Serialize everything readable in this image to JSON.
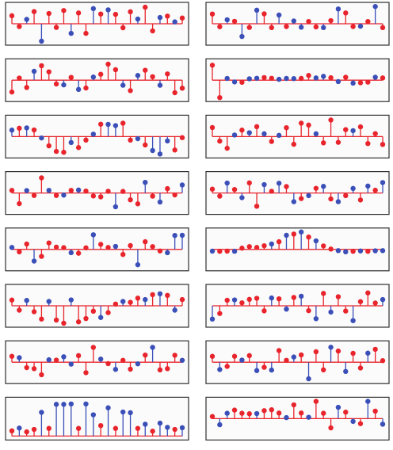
{
  "colors": {
    "red": "#e8242c",
    "blue": "#3b4fb8",
    "frame": "#2e2e2e",
    "panel_bg": "#fbfbfb"
  },
  "chart_data": [
    {
      "type": "stem",
      "panel": "left-1",
      "baseline": 0,
      "ylim": [
        -1,
        1
      ],
      "series": [
        {
          "color": "red",
          "x": [
            1,
            2,
            4,
            6,
            7,
            8,
            10,
            11,
            13,
            15,
            16,
            17,
            19,
            20,
            22,
            24
          ],
          "values": [
            0.46,
            -0.16,
            0.7,
            0.59,
            -0.21,
            0.76,
            0.62,
            -0.55,
            0.56,
            0.54,
            -0.23,
            0.69,
            0.95,
            -0.41,
            0.44,
            0.33
          ]
        },
        {
          "color": "blue",
          "x": [
            3,
            5,
            9,
            12,
            14,
            18,
            21,
            23
          ],
          "values": [
            0.25,
            -1.0,
            -0.55,
            0.87,
            0.8,
            0.27,
            0.36,
            0.11
          ]
        }
      ]
    },
    {
      "type": "stem",
      "panel": "right-1",
      "baseline": 0,
      "ylim": [
        -1,
        1
      ],
      "series": [
        {
          "color": "red",
          "x": [
            1,
            2,
            4,
            6,
            8,
            9,
            11,
            14,
            15,
            17,
            19,
            20,
            22,
            24
          ],
          "values": [
            0.56,
            -0.17,
            0.14,
            -0.21,
            0.57,
            -0.22,
            -0.16,
            0.13,
            -0.18,
            0.18,
            0.62,
            -0.16,
            0.13,
            -0.22
          ]
        },
        {
          "color": "blue",
          "x": [
            3,
            5,
            7,
            10,
            12,
            13,
            16,
            18,
            21,
            23
          ],
          "values": [
            0.23,
            -0.73,
            0.78,
            0.5,
            0.16,
            -0.2,
            -0.22,
            0.85,
            -0.14,
            0.99
          ]
        }
      ]
    },
    {
      "type": "stem",
      "panel": "left-2",
      "baseline": 0,
      "ylim": [
        -1,
        1
      ],
      "series": [
        {
          "color": "red",
          "x": [
            1,
            2,
            3,
            5,
            6,
            7,
            9,
            11,
            13,
            14,
            15,
            17,
            19,
            20,
            22,
            23,
            24
          ],
          "values": [
            -0.68,
            0.12,
            -0.42,
            0.83,
            0.48,
            -0.22,
            0.16,
            -0.45,
            0.34,
            0.92,
            0.6,
            -0.6,
            0.57,
            0.2,
            0.36,
            -0.72,
            -0.46
          ]
        },
        {
          "color": "blue",
          "x": [
            4,
            8,
            10,
            12,
            16,
            18,
            21
          ],
          "values": [
            0.51,
            -0.27,
            -0.53,
            0.18,
            -0.29,
            0.27,
            -0.29
          ]
        }
      ]
    },
    {
      "type": "stem",
      "panel": "right-2",
      "baseline": 0,
      "ylim": [
        -1,
        1
      ],
      "series": [
        {
          "color": "red",
          "x": [
            1,
            2,
            5,
            8,
            9,
            13,
            14,
            17,
            19,
            21,
            22,
            24
          ],
          "values": [
            0.86,
            -1.0,
            -0.12,
            0.15,
            0.11,
            0.1,
            0.27,
            0.14,
            0.17,
            -0.15,
            -0.11,
            0.13
          ]
        },
        {
          "color": "blue",
          "x": [
            3,
            4,
            6,
            7,
            10,
            11,
            12,
            15,
            16,
            18,
            20,
            23
          ],
          "values": [
            0.1,
            -0.1,
            0.08,
            0.11,
            0.05,
            0.1,
            0.09,
            0.13,
            0.22,
            -0.08,
            -0.17,
            0.17
          ]
        }
      ]
    },
    {
      "type": "stem",
      "panel": "left-3",
      "baseline": 0,
      "ylim": [
        -1,
        1
      ],
      "series": [
        {
          "color": "red",
          "x": [
            2,
            4,
            6,
            7,
            8,
            10,
            11,
            13,
            16,
            17,
            19,
            23,
            24
          ],
          "values": [
            0.48,
            0.38,
            -0.53,
            -0.85,
            -0.9,
            -0.63,
            -0.2,
            0.71,
            0.77,
            -0.2,
            -0.48,
            -0.77,
            -0.06
          ]
        },
        {
          "color": "blue",
          "x": [
            1,
            3,
            5,
            9,
            12,
            14,
            15,
            18,
            20,
            21,
            22
          ],
          "values": [
            0.37,
            0.5,
            -0.08,
            -0.34,
            0.14,
            0.7,
            0.63,
            -0.12,
            -0.8,
            -1.0,
            -0.25
          ]
        }
      ]
    },
    {
      "type": "stem",
      "panel": "right-3",
      "baseline": 0,
      "ylim": [
        -1,
        1
      ],
      "series": [
        {
          "color": "red",
          "x": [
            1,
            2,
            3,
            5,
            7,
            9,
            11,
            12,
            13,
            14,
            16,
            17,
            18,
            19,
            21,
            22,
            23,
            24
          ],
          "values": [
            0.52,
            -0.26,
            -0.67,
            0.37,
            0.57,
            -0.28,
            0.51,
            -0.44,
            0.77,
            0.66,
            -0.36,
            0.95,
            -0.33,
            0.4,
            0.56,
            -0.4,
            0.17,
            -0.45
          ]
        },
        {
          "color": "blue",
          "x": [
            4,
            6,
            8,
            10,
            15,
            20
          ],
          "values": [
            0.09,
            0.22,
            0.16,
            0.07,
            0.16,
            0.34
          ]
        }
      ]
    },
    {
      "type": "stem",
      "panel": "left-4",
      "baseline": 0,
      "ylim": [
        -1,
        1
      ],
      "series": [
        {
          "color": "red",
          "x": [
            1,
            2,
            4,
            5,
            7,
            9,
            11,
            12,
            13,
            14,
            16,
            17,
            18,
            20,
            22,
            23
          ],
          "values": [
            0.15,
            -0.61,
            -0.14,
            0.87,
            -0.14,
            0.15,
            0.11,
            -0.17,
            -0.22,
            0.1,
            0.09,
            -0.39,
            -0.62,
            -0.18,
            0.25,
            -0.11
          ]
        },
        {
          "color": "blue",
          "x": [
            3,
            6,
            8,
            10,
            15,
            19,
            21,
            24
          ],
          "values": [
            0.14,
            0.15,
            -0.12,
            0.17,
            -0.79,
            0.61,
            -0.52,
            0.46
          ]
        }
      ]
    },
    {
      "type": "stem",
      "panel": "right-4",
      "baseline": 0,
      "ylim": [
        -1,
        1
      ],
      "series": [
        {
          "color": "red",
          "x": [
            1,
            2,
            4,
            6,
            7,
            9,
            11,
            13,
            15,
            17,
            19,
            21,
            23
          ],
          "values": [
            0.22,
            -0.18,
            0.2,
            0.58,
            -0.76,
            0.1,
            0.37,
            -0.32,
            0.27,
            -0.34,
            -0.15,
            -0.4,
            0.16
          ]
        },
        {
          "color": "blue",
          "x": [
            3,
            5,
            8,
            10,
            12,
            14,
            16,
            18,
            20,
            22,
            24
          ],
          "values": [
            0.57,
            -0.27,
            0.48,
            0.56,
            -0.5,
            -0.15,
            0.38,
            -0.5,
            0.26,
            0.4,
            0.6
          ]
        }
      ]
    },
    {
      "type": "stem",
      "panel": "left-5",
      "baseline": 0,
      "ylim": [
        -1,
        1
      ],
      "series": [
        {
          "color": "red",
          "x": [
            2,
            3,
            5,
            6,
            7,
            8,
            10,
            11,
            13,
            14,
            16,
            17,
            19,
            20,
            21
          ],
          "values": [
            -0.14,
            0.31,
            -0.4,
            0.37,
            0.13,
            0.1,
            -0.22,
            0.09,
            0.29,
            0.11,
            -0.29,
            0.22,
            0.44,
            0.16,
            -0.09
          ]
        },
        {
          "color": "blue",
          "x": [
            1,
            4,
            9,
            12,
            15,
            18,
            22,
            23,
            24
          ],
          "values": [
            0.11,
            -0.67,
            -0.19,
            0.84,
            0.17,
            -0.88,
            -0.19,
            0.8,
            0.81
          ]
        }
      ]
    },
    {
      "type": "stem",
      "panel": "right-5",
      "baseline": 0,
      "ylim": [
        -1,
        1
      ],
      "series": [
        {
          "color": "red",
          "x": [
            2,
            3,
            5,
            6,
            7,
            8,
            10,
            12,
            14,
            16,
            17,
            20,
            22
          ],
          "values": [
            -0.11,
            -0.1,
            0.07,
            0.16,
            0.11,
            0.21,
            0.44,
            0.88,
            0.71,
            0.2,
            0.02,
            -0.11,
            -0.11
          ]
        },
        {
          "color": "blue",
          "x": [
            1,
            4,
            9,
            11,
            13,
            15,
            18,
            19,
            21,
            23,
            24
          ],
          "values": [
            -0.1,
            -0.11,
            0.31,
            0.81,
            1.0,
            0.49,
            -0.07,
            -0.14,
            -0.09,
            -0.08,
            -0.07
          ]
        }
      ]
    },
    {
      "type": "stem",
      "panel": "left-6",
      "baseline": 0,
      "ylim": [
        -1,
        1
      ],
      "series": [
        {
          "color": "red",
          "x": [
            1,
            2,
            4,
            5,
            7,
            8,
            10,
            11,
            12,
            14,
            15,
            17,
            18,
            20,
            22,
            24
          ],
          "values": [
            0.33,
            -0.25,
            -0.34,
            -0.76,
            -0.82,
            -1.0,
            -0.92,
            -0.73,
            -0.31,
            -0.39,
            0.1,
            0.2,
            0.44,
            0.64,
            0.6,
            0.36
          ]
        },
        {
          "color": "blue",
          "x": [
            3,
            6,
            9,
            13,
            16,
            19,
            21,
            23
          ],
          "values": [
            0.31,
            0.25,
            0.34,
            -0.67,
            0.25,
            0.36,
            0.69,
            -0.25
          ]
        }
      ]
    },
    {
      "type": "stem",
      "panel": "right-6",
      "baseline": 0,
      "ylim": [
        -1,
        1
      ],
      "series": [
        {
          "color": "red",
          "x": [
            2,
            3,
            5,
            6,
            7,
            8,
            10,
            12,
            14,
            16,
            18,
            19,
            21,
            22,
            23
          ],
          "values": [
            -0.44,
            0.32,
            0.17,
            0.37,
            0.43,
            -0.29,
            0.4,
            0.48,
            -0.28,
            0.71,
            0.52,
            -0.3,
            0.24,
            0.74,
            0.16
          ]
        },
        {
          "color": "blue",
          "x": [
            1,
            4,
            9,
            11,
            13,
            15,
            17,
            20,
            24
          ],
          "values": [
            -0.76,
            0.34,
            0.45,
            -0.19,
            0.55,
            -0.74,
            -0.36,
            -0.85,
            0.36
          ]
        }
      ]
    },
    {
      "type": "stem",
      "panel": "left-7",
      "baseline": 0,
      "ylim": [
        -1,
        1
      ],
      "series": [
        {
          "color": "red",
          "x": [
            1,
            3,
            4,
            5,
            7,
            10,
            11,
            12,
            14,
            16,
            17,
            19,
            21,
            22,
            23
          ],
          "values": [
            0.34,
            -0.31,
            -0.37,
            -0.72,
            0.12,
            0.38,
            -0.6,
            0.85,
            -0.08,
            0.11,
            -0.4,
            0.41,
            -0.44,
            -0.37,
            0.4
          ]
        },
        {
          "color": "blue",
          "x": [
            2,
            6,
            8,
            9,
            13,
            15,
            18,
            20,
            24
          ],
          "values": [
            0.26,
            0.14,
            0.31,
            -0.11,
            0.18,
            -0.41,
            -0.09,
            0.85,
            0.11
          ]
        }
      ]
    },
    {
      "type": "stem",
      "panel": "right-7",
      "baseline": 0,
      "ylim": [
        -1,
        1
      ],
      "series": [
        {
          "color": "red",
          "x": [
            1,
            3,
            4,
            6,
            8,
            10,
            11,
            13,
            15,
            16,
            18,
            20,
            21,
            23,
            24
          ],
          "values": [
            0.34,
            -0.24,
            0.34,
            0.38,
            -0.29,
            0.67,
            0.11,
            0.42,
            0.6,
            -0.44,
            0.64,
            0.51,
            -0.33,
            0.74,
            0.09
          ]
        },
        {
          "color": "blue",
          "x": [
            2,
            5,
            7,
            9,
            12,
            14,
            17,
            19,
            22
          ],
          "values": [
            -0.42,
            0.12,
            -0.48,
            -0.45,
            0.3,
            -0.95,
            0.86,
            -0.53,
            0.52
          ]
        }
      ]
    },
    {
      "type": "stem",
      "panel": "left-8",
      "baseline": 0,
      "ylim": [
        0,
        1
      ],
      "series": [
        {
          "color": "red",
          "x": [
            1,
            3,
            4,
            6,
            10,
            13,
            15,
            18,
            20,
            23
          ],
          "values": [
            0.15,
            0.12,
            0.19,
            0.22,
            0.22,
            0.3,
            0.22,
            0.22,
            0.14,
            0.19
          ]
        },
        {
          "color": "blue",
          "x": [
            2,
            5,
            7,
            8,
            9,
            11,
            12,
            14,
            16,
            17,
            19,
            21,
            22,
            24
          ],
          "values": [
            0.23,
            0.68,
            0.91,
            0.91,
            0.92,
            0.92,
            0.61,
            0.81,
            0.69,
            0.67,
            0.34,
            0.37,
            0.25,
            0.24
          ]
        }
      ]
    },
    {
      "type": "stem",
      "panel": "right-8",
      "baseline": 0,
      "ylim": [
        -1,
        1
      ],
      "series": [
        {
          "color": "red",
          "x": [
            1,
            4,
            5,
            6,
            8,
            9,
            10,
            12,
            13,
            15,
            16,
            17,
            19,
            21,
            23
          ],
          "values": [
            0.12,
            0.49,
            0.31,
            0.28,
            0.46,
            0.51,
            0.32,
            0.79,
            0.32,
            0.99,
            0.31,
            -0.53,
            0.37,
            -0.29,
            0.43
          ]
        },
        {
          "color": "blue",
          "x": [
            2,
            3,
            7,
            11,
            14,
            18,
            20,
            22,
            24
          ],
          "values": [
            -0.35,
            0.31,
            0.29,
            0.06,
            0.08,
            0.65,
            -0.16,
            0.99,
            -0.32
          ]
        }
      ]
    }
  ]
}
